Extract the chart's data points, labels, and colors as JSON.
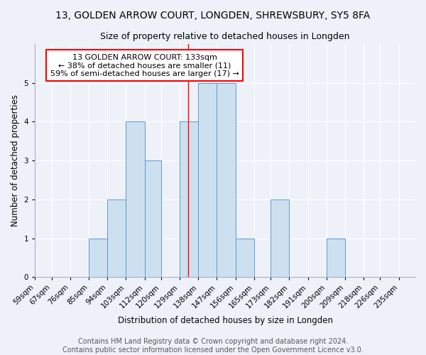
{
  "title": "13, GOLDEN ARROW COURT, LONGDEN, SHREWSBURY, SY5 8FA",
  "subtitle": "Size of property relative to detached houses in Longden",
  "xlabel": "Distribution of detached houses by size in Longden",
  "ylabel": "Number of detached properties",
  "bin_labels": [
    "59sqm",
    "67sqm",
    "76sqm",
    "85sqm",
    "94sqm",
    "103sqm",
    "112sqm",
    "120sqm",
    "129sqm",
    "138sqm",
    "147sqm",
    "156sqm",
    "165sqm",
    "173sqm",
    "182sqm",
    "191sqm",
    "200sqm",
    "209sqm",
    "218sqm",
    "226sqm",
    "235sqm"
  ],
  "bin_edges": [
    59,
    67,
    76,
    85,
    94,
    103,
    112,
    120,
    129,
    138,
    147,
    156,
    165,
    173,
    182,
    191,
    200,
    209,
    218,
    226,
    235
  ],
  "counts": [
    0,
    0,
    0,
    1,
    2,
    4,
    3,
    0,
    4,
    5,
    5,
    1,
    0,
    2,
    0,
    0,
    1,
    0,
    0,
    0
  ],
  "bar_color": "#cce0f0",
  "bar_edge_color": "#5b9bd5",
  "reference_line_x": 133,
  "annotation_text": "13 GOLDEN ARROW COURT: 133sqm\n← 38% of detached houses are smaller (11)\n59% of semi-detached houses are larger (17) →",
  "annotation_box_color": "white",
  "annotation_box_edge_color": "red",
  "ylim": [
    0,
    6
  ],
  "yticks": [
    0,
    1,
    2,
    3,
    4,
    5,
    6
  ],
  "footer_text": "Contains HM Land Registry data © Crown copyright and database right 2024.\nContains public sector information licensed under the Open Government Licence v3.0.",
  "title_fontsize": 10,
  "subtitle_fontsize": 9,
  "axis_label_fontsize": 8.5,
  "tick_fontsize": 7.5,
  "annotation_fontsize": 8,
  "footer_fontsize": 7,
  "background_color": "#eef2f8"
}
